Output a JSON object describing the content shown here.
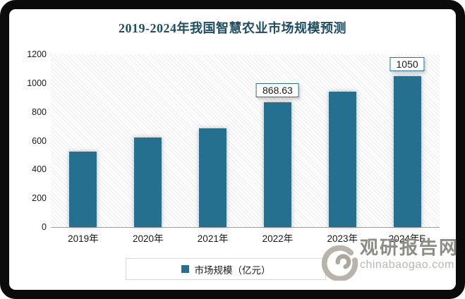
{
  "title": "2019-2024年我国智慧农业市场规模预测",
  "chart_data": {
    "type": "bar",
    "title": "2019-2024年我国智慧农业市场规模预测",
    "categories": [
      "2019年",
      "2020年",
      "2021年",
      "2022年",
      "2023年",
      "2024年E"
    ],
    "values": [
      525,
      620,
      685,
      868.63,
      940,
      1050
    ],
    "data_labels": [
      null,
      null,
      null,
      "868.63",
      null,
      "1050"
    ],
    "xlabel": "",
    "ylabel": "",
    "ylim": [
      0,
      1200
    ],
    "yticks": [
      0,
      200,
      400,
      600,
      800,
      1000,
      1200
    ],
    "grid": false,
    "plot_background": "diagonal-hatch",
    "legend_position": "bottom",
    "bar_color": "#256F8F",
    "label_box_border_color": "#2A7396",
    "title_color": "#1F4E63"
  },
  "legend": {
    "label": "市场规模（亿元）",
    "swatch_color": "#256F8F"
  },
  "watermark": {
    "brand": "观研报告网",
    "domain": "chinabaogao.com"
  }
}
